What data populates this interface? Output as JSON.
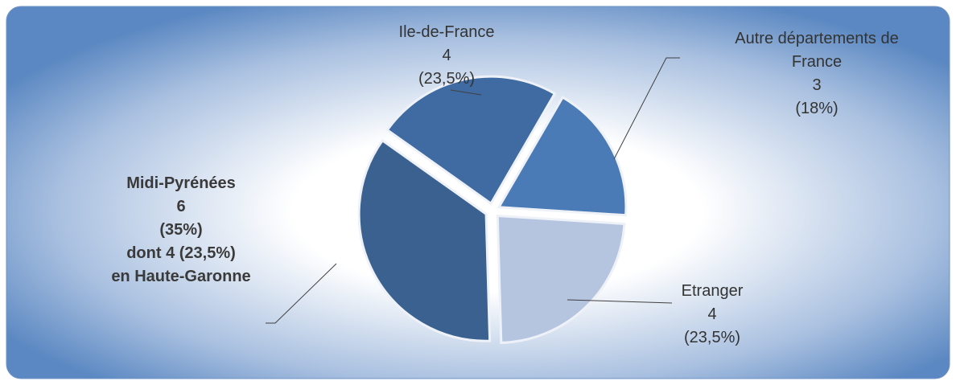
{
  "chart_data": {
    "type": "pie",
    "categories": [
      "Ile-de-France",
      "Autre départements de France",
      "Etranger",
      "Midi-Pyrénées"
    ],
    "values": [
      4,
      3,
      4,
      6
    ],
    "percentages": [
      23.5,
      18,
      23.5,
      35
    ],
    "percentage_labels": [
      "(23,5%)",
      "(18%)",
      "(23,5%)",
      "(35%)"
    ],
    "colors": [
      "#3f6ba2",
      "#4a7bb7",
      "#b5c5df",
      "#3a6190"
    ],
    "annotation": {
      "category": 3,
      "lines": [
        "dont 4 (23,5%)",
        "en Haute-Garonne"
      ]
    }
  }
}
